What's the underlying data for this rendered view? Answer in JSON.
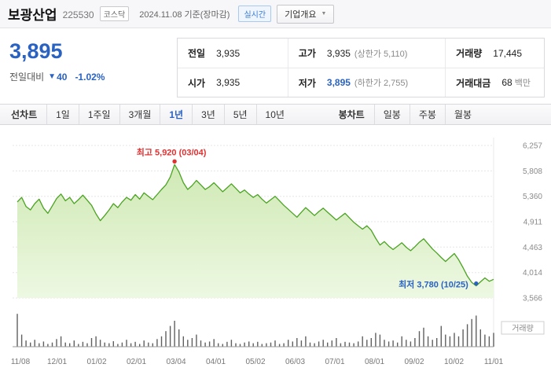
{
  "header": {
    "name": "보광산업",
    "code": "225530",
    "market_badge": "코스닥",
    "as_of": "2024.11.08 기준(장마감)",
    "realtime_label": "실시간",
    "overview_label": "기업개요"
  },
  "price": {
    "current": "3,895",
    "change_label": "전일대비",
    "change_direction": "▼",
    "change_value": "40",
    "change_percent": "-1.02%",
    "down_color": "#2a62c1"
  },
  "summary": {
    "rows": [
      [
        {
          "label": "전일",
          "value": "3,935"
        },
        {
          "label": "고가",
          "value": "3,935",
          "extra": "(상한가 5,110)"
        },
        {
          "label": "거래량",
          "value": "17,445"
        }
      ],
      [
        {
          "label": "시가",
          "value": "3,935"
        },
        {
          "label": "저가",
          "value": "3,895",
          "extra": "(하한가 2,755)"
        },
        {
          "label": "거래대금",
          "value": "68",
          "unit": "백만"
        }
      ]
    ]
  },
  "tabs": {
    "line_group_label": "선차트",
    "line_tabs": [
      "1일",
      "1주일",
      "3개월",
      "1년",
      "3년",
      "5년",
      "10년"
    ],
    "active_line_tab": "1년",
    "candle_group_label": "봉차트",
    "candle_tabs": [
      "일봉",
      "주봉",
      "월봉"
    ]
  },
  "chart_data": {
    "type": "area",
    "y_ticks": [
      6257,
      5808,
      5360,
      4911,
      4463,
      4014,
      3566
    ],
    "x_labels": [
      "11/08",
      "12/01",
      "01/02",
      "02/01",
      "03/04",
      "04/01",
      "05/02",
      "06/03",
      "07/01",
      "08/01",
      "09/02",
      "10/02",
      "11/01"
    ],
    "max_annotation": {
      "label": "최고 5,920 (03/04)",
      "value": 5920,
      "color": "#e03131"
    },
    "min_annotation": {
      "label": "최저 3,780 (10/25)",
      "value": 3780,
      "color": "#2a62c1"
    },
    "volume_label": "거래량",
    "line_color": "#4aa321",
    "fill_top": "#cfe9b4",
    "fill_bottom": "#edf8e2",
    "volume_color": "#5f5f5f",
    "prices": [
      5260,
      5340,
      5180,
      5120,
      5230,
      5310,
      5150,
      5060,
      5190,
      5320,
      5400,
      5280,
      5340,
      5230,
      5300,
      5380,
      5290,
      5200,
      5050,
      4930,
      5020,
      5120,
      5230,
      5160,
      5260,
      5340,
      5290,
      5390,
      5310,
      5420,
      5360,
      5300,
      5390,
      5480,
      5560,
      5700,
      5920,
      5790,
      5600,
      5480,
      5550,
      5640,
      5560,
      5480,
      5530,
      5600,
      5520,
      5440,
      5510,
      5580,
      5500,
      5420,
      5470,
      5400,
      5340,
      5390,
      5310,
      5240,
      5300,
      5360,
      5280,
      5200,
      5130,
      5060,
      4990,
      5080,
      5160,
      5090,
      5020,
      5090,
      5150,
      5080,
      5010,
      4940,
      5000,
      5060,
      4980,
      4900,
      4840,
      4780,
      4840,
      4760,
      4620,
      4500,
      4560,
      4480,
      4420,
      4480,
      4540,
      4460,
      4400,
      4470,
      4550,
      4610,
      4520,
      4430,
      4360,
      4280,
      4210,
      4280,
      4350,
      4240,
      4100,
      3950,
      3840,
      3780,
      3850,
      3920,
      3860,
      3895
    ],
    "volumes": [
      0.95,
      0.35,
      0.18,
      0.12,
      0.2,
      0.1,
      0.15,
      0.08,
      0.12,
      0.22,
      0.3,
      0.12,
      0.1,
      0.18,
      0.08,
      0.14,
      0.1,
      0.25,
      0.3,
      0.2,
      0.12,
      0.1,
      0.16,
      0.08,
      0.12,
      0.2,
      0.1,
      0.14,
      0.08,
      0.18,
      0.12,
      0.1,
      0.22,
      0.3,
      0.45,
      0.6,
      0.75,
      0.5,
      0.3,
      0.2,
      0.25,
      0.35,
      0.18,
      0.12,
      0.15,
      0.22,
      0.1,
      0.08,
      0.14,
      0.2,
      0.1,
      0.08,
      0.12,
      0.15,
      0.1,
      0.14,
      0.08,
      0.1,
      0.12,
      0.18,
      0.08,
      0.1,
      0.2,
      0.15,
      0.25,
      0.18,
      0.3,
      0.12,
      0.1,
      0.15,
      0.2,
      0.12,
      0.18,
      0.25,
      0.1,
      0.14,
      0.12,
      0.1,
      0.15,
      0.3,
      0.2,
      0.25,
      0.4,
      0.35,
      0.2,
      0.15,
      0.18,
      0.12,
      0.3,
      0.2,
      0.15,
      0.25,
      0.45,
      0.55,
      0.3,
      0.2,
      0.25,
      0.6,
      0.35,
      0.3,
      0.4,
      0.3,
      0.5,
      0.65,
      0.8,
      0.9,
      0.5,
      0.35,
      0.3,
      0.4
    ]
  }
}
